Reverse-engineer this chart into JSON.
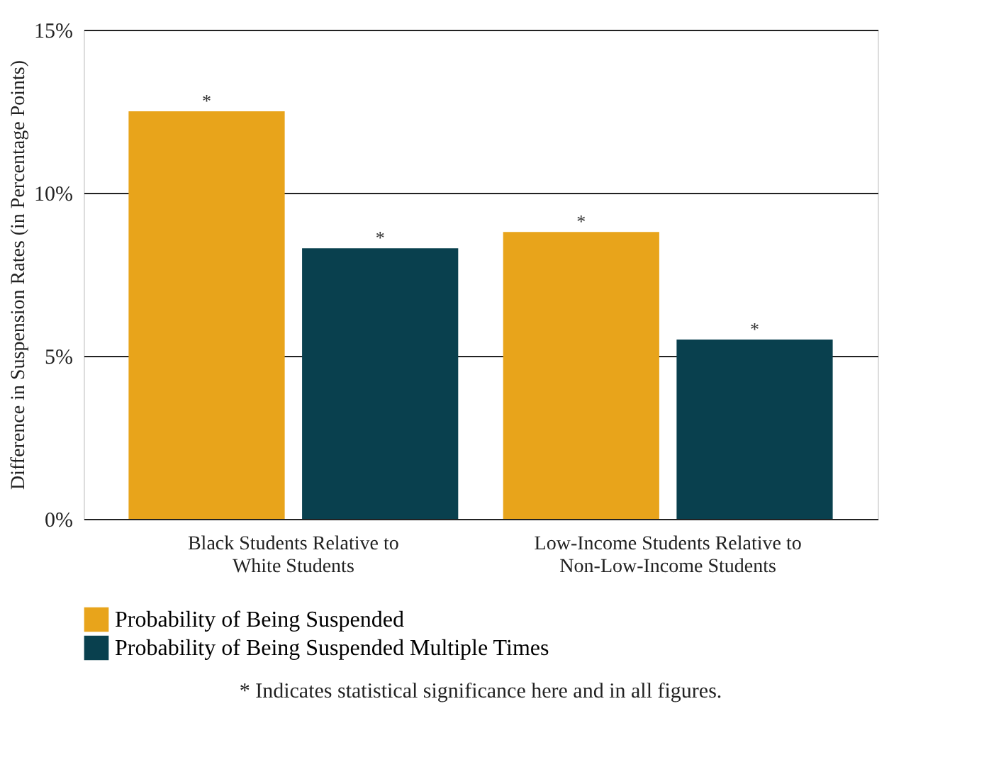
{
  "chart_data": {
    "type": "bar",
    "ylabel": "Difference in Suspension Rates (in Percentage Points)",
    "categories": [
      "Black Students Relative to\nWhite Students",
      "Low-Income Students Relative to\nNon-Low-Income Students"
    ],
    "series": [
      {
        "name": "Probability of Being Suspended",
        "color": "#e8a41b",
        "values": [
          12.5,
          8.8
        ],
        "value_labels": [
          "*",
          "*"
        ]
      },
      {
        "name": "Probability of Being Suspended Multiple Times",
        "color": "#09404e",
        "values": [
          8.3,
          5.5
        ],
        "value_labels": [
          "*",
          "*"
        ]
      }
    ],
    "ylim": [
      0,
      15
    ],
    "yticks": [
      {
        "value": 0,
        "label": "0%"
      },
      {
        "value": 5,
        "label": "5%"
      },
      {
        "value": 10,
        "label": "10%"
      },
      {
        "value": 15,
        "label": "15%"
      }
    ],
    "grid": "y",
    "legend": "bottom",
    "annotations": [
      "* Indicates statistical significance here and in all figures."
    ]
  }
}
